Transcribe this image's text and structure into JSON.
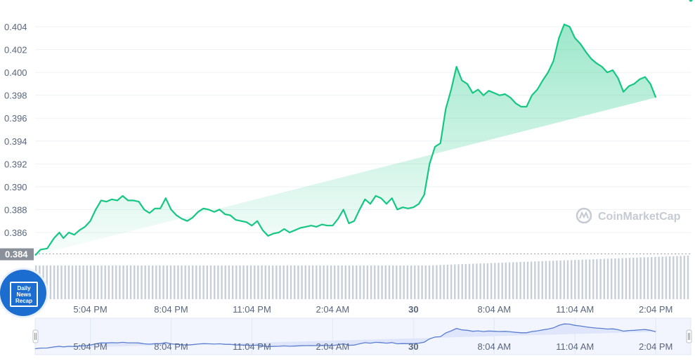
{
  "chart_data": {
    "type": "area",
    "title": "",
    "xlabel": "",
    "ylabel": "",
    "yticks": [
      "0.404",
      "0.402",
      "0.400",
      "0.398",
      "0.396",
      "0.394",
      "0.392",
      "0.390",
      "0.388",
      "0.386"
    ],
    "ylim": [
      0.3836,
      0.4046
    ],
    "baseline": {
      "value": 0.384,
      "label": "0.384"
    },
    "xtick_labels": [
      "5:04 PM",
      "8:04 PM",
      "11:04 PM",
      "2:04 AM",
      "30",
      "8:04 AM",
      "11:04 AM",
      "2:04 PM"
    ],
    "xtick_hours": [
      1,
      4,
      7,
      10,
      13,
      16,
      19,
      22
    ],
    "x_range_hours": [
      -1.05,
      23.3
    ],
    "series": [
      {
        "values_x_hours": [
          -1.05,
          -0.85,
          -0.6,
          -0.35,
          -0.15,
          0.0,
          0.2,
          0.4,
          0.6,
          0.8,
          1.0,
          1.2,
          1.4,
          1.6,
          1.8,
          2.0,
          2.2,
          2.4,
          2.6,
          2.8,
          3.0,
          3.2,
          3.4,
          3.6,
          3.8,
          4.0,
          4.2,
          4.4,
          4.6,
          4.8,
          5.0,
          5.2,
          5.4,
          5.6,
          5.8,
          6.0,
          6.2,
          6.4,
          6.6,
          6.8,
          7.0,
          7.2,
          7.4,
          7.6,
          7.8,
          8.0,
          8.2,
          8.4,
          8.6,
          8.8,
          9.0,
          9.2,
          9.4,
          9.6,
          9.8,
          10.0,
          10.2,
          10.4,
          10.6,
          10.8,
          11.0,
          11.2,
          11.4,
          11.6,
          11.8,
          12.0,
          12.2,
          12.4,
          12.6,
          12.8,
          13.0,
          13.2,
          13.4,
          13.6,
          13.8,
          14.0,
          14.2,
          14.4,
          14.6,
          14.8,
          15.0,
          15.2,
          15.4,
          15.6,
          15.8,
          16.0,
          16.2,
          16.4,
          16.6,
          16.8,
          17.0,
          17.2,
          17.4,
          17.6,
          17.8,
          18.0,
          18.2,
          18.4,
          18.6,
          18.8,
          19.0,
          19.2,
          19.4,
          19.6,
          19.8,
          20.0,
          20.2,
          20.4,
          20.6,
          20.8,
          21.0,
          21.2,
          21.4,
          21.6,
          21.8,
          22.0,
          22.2,
          22.4,
          22.6,
          22.8,
          23.0,
          23.3
        ],
        "values_y": [
          0.384,
          0.3845,
          0.3846,
          0.3855,
          0.386,
          0.3855,
          0.386,
          0.3858,
          0.3862,
          0.3865,
          0.387,
          0.388,
          0.3888,
          0.3887,
          0.3889,
          0.3888,
          0.3892,
          0.3888,
          0.3888,
          0.3887,
          0.388,
          0.3877,
          0.3881,
          0.3881,
          0.389,
          0.388,
          0.3875,
          0.3872,
          0.387,
          0.3873,
          0.3878,
          0.3881,
          0.388,
          0.3878,
          0.388,
          0.3876,
          0.3875,
          0.3871,
          0.387,
          0.3869,
          0.3866,
          0.387,
          0.3862,
          0.3857,
          0.3859,
          0.386,
          0.3863,
          0.386,
          0.3862,
          0.3864,
          0.3865,
          0.3866,
          0.3865,
          0.3867,
          0.3866,
          0.3866,
          0.3872,
          0.388,
          0.3868,
          0.387,
          0.388,
          0.3889,
          0.3885,
          0.3892,
          0.389,
          0.3885,
          0.389,
          0.388,
          0.3882,
          0.3881,
          0.3882,
          0.3885,
          0.3893,
          0.392,
          0.3935,
          0.3938,
          0.3968,
          0.3985,
          0.4005,
          0.3993,
          0.399,
          0.3982,
          0.3985,
          0.398,
          0.3984,
          0.3982,
          0.398,
          0.3981,
          0.3978,
          0.3973,
          0.397,
          0.397,
          0.398,
          0.3985,
          0.3993,
          0.4,
          0.401,
          0.403,
          0.4042,
          0.404,
          0.403,
          0.4025,
          0.4018,
          0.4012,
          0.4008,
          0.4005,
          0.4,
          0.4002,
          0.3995,
          0.3983,
          0.3988,
          0.399,
          0.3994,
          0.3996,
          0.399,
          0.3978
        ]
      }
    ],
    "volume_bars": 180,
    "grid": true,
    "legend": "none",
    "watermark": "CoinMarketCap",
    "navigator_xtick_labels": [
      "5:04 PM",
      "8:04 PM",
      "11:04 PM",
      "2:04 AM",
      "30",
      "8:04 AM",
      "11:04 AM",
      "2:04 PM"
    ],
    "colors": {
      "line": "#16c784",
      "fill_top": "#16c784",
      "grid": "#eff2f5",
      "axis_text": "#58667e",
      "volume": "#c8cfd8",
      "navigator_fill": "#dfe6fb",
      "navigator_line": "#5a7ed1",
      "baseline_label_bg": "#8a9099"
    }
  },
  "badge": {
    "lines": [
      "Daily",
      "News",
      "Recap"
    ]
  }
}
